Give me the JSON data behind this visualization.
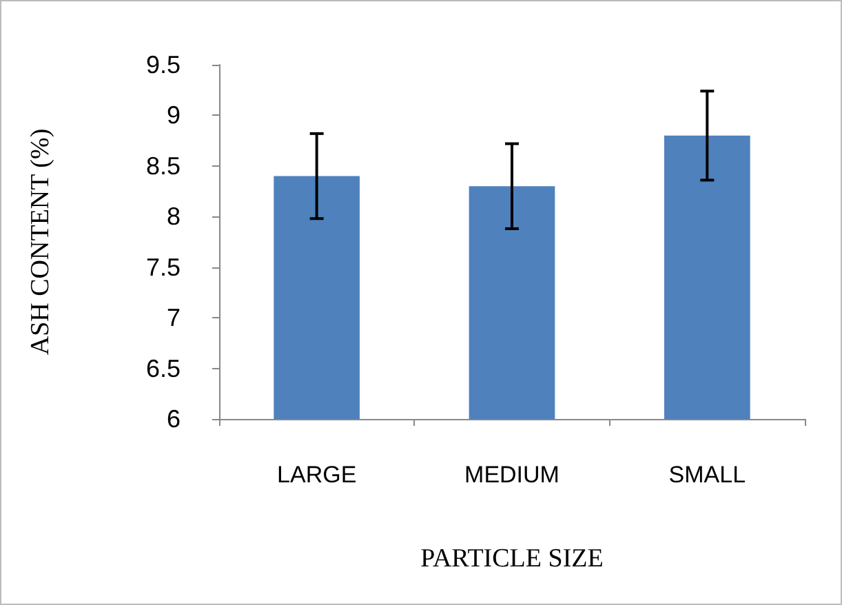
{
  "chart_data": {
    "type": "bar",
    "xlabel": "PARTICLE SIZE",
    "ylabel": "ASH CONTENT (%)",
    "categories": [
      "LARGE",
      "MEDIUM",
      "SMALL"
    ],
    "values": [
      8.4,
      8.3,
      8.8
    ],
    "errors": [
      0.42,
      0.42,
      0.44
    ],
    "color": "#4f81bd",
    "ylim": [
      6,
      9.5
    ],
    "yticks": [
      6,
      6.5,
      7,
      7.5,
      8,
      8.5,
      9,
      9.5
    ],
    "grid": false
  }
}
